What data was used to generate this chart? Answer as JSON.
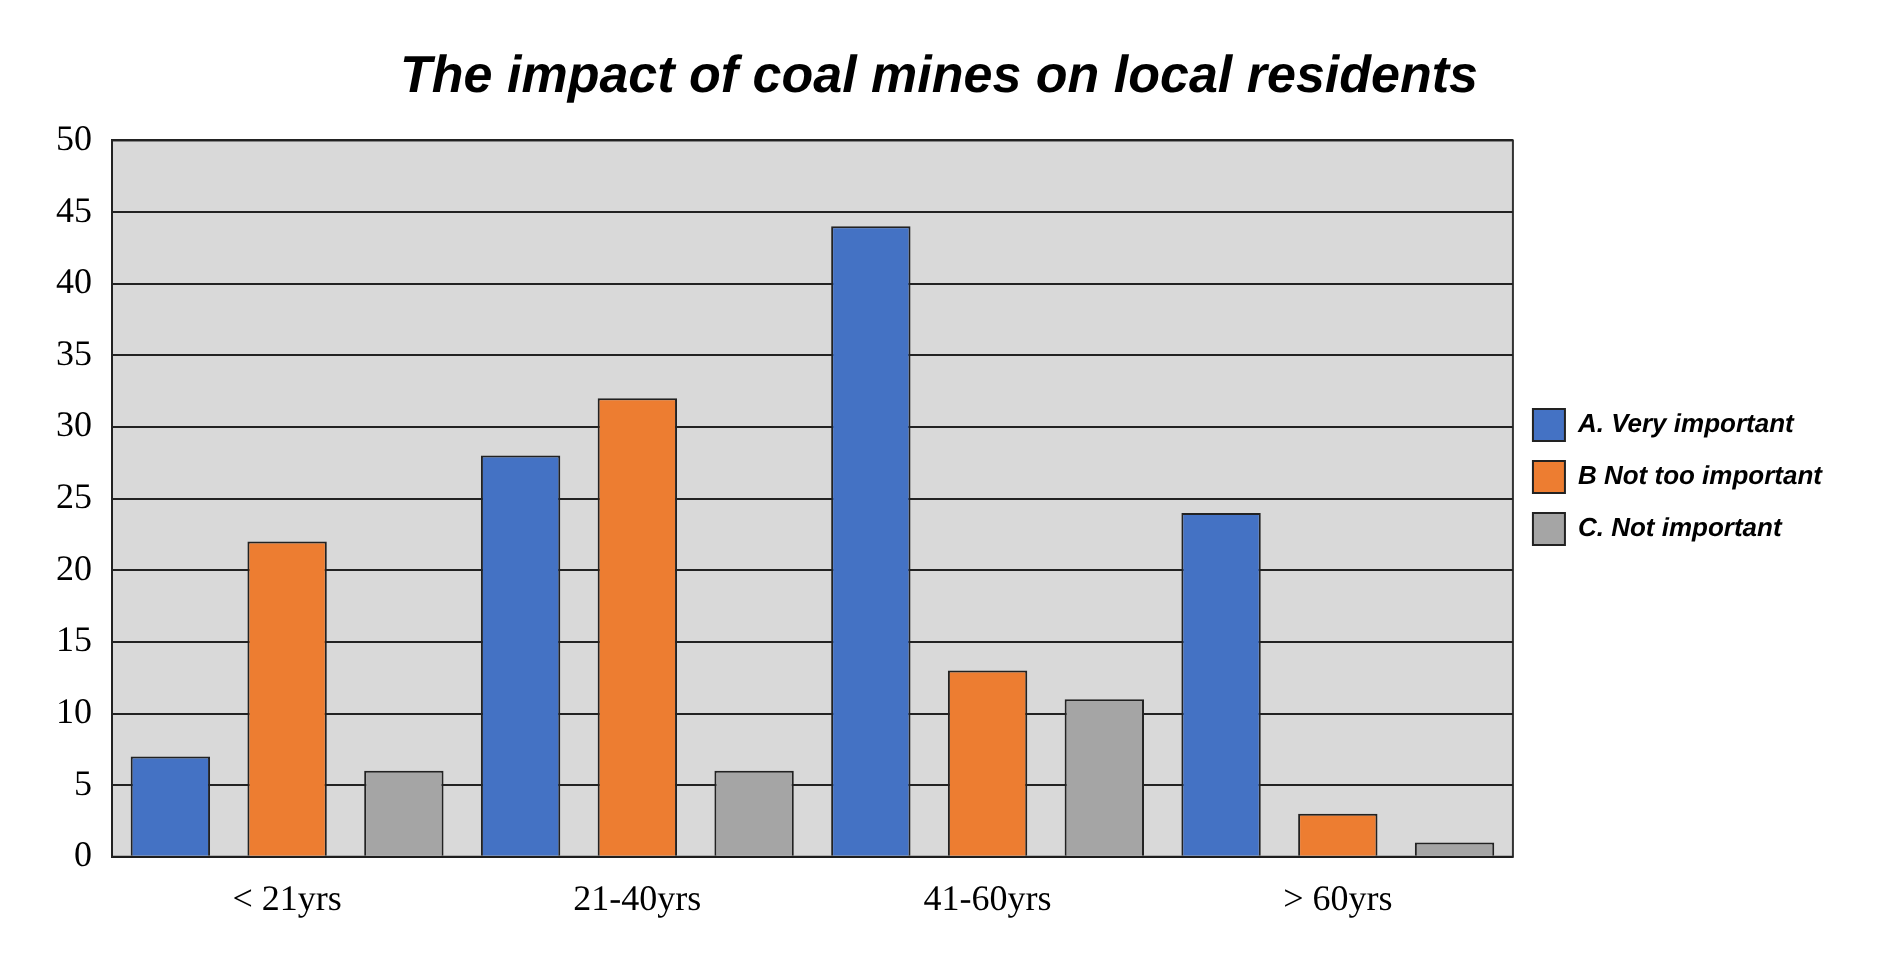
{
  "chart_data": {
    "type": "bar",
    "title": "The impact of coal mines on local residents",
    "categories": [
      "< 21yrs",
      "21-40yrs",
      "41-60yrs",
      "> 60yrs"
    ],
    "series": [
      {
        "name": "A. Very important",
        "color": "#4472c4",
        "values": [
          7,
          28,
          44,
          24
        ]
      },
      {
        "name": "B Not too important",
        "color": "#ed7d31",
        "values": [
          22,
          32,
          13,
          3
        ]
      },
      {
        "name": "C. Not important",
        "color": "#a5a5a5",
        "values": [
          6,
          6,
          11,
          1
        ]
      }
    ],
    "ylim": [
      0,
      50
    ],
    "yticks": [
      0,
      5,
      10,
      15,
      20,
      25,
      30,
      35,
      40,
      45,
      50
    ],
    "grid": "y",
    "legend": "right"
  }
}
